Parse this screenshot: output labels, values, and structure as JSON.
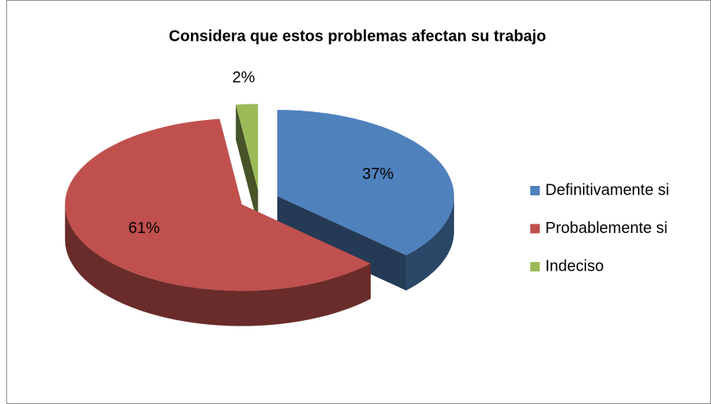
{
  "chart_data": {
    "type": "pie",
    "title": "Considera que estos problemas afectan su trabajo",
    "categories": [
      "Definitivamente si",
      "Probablemente si",
      "Indeciso"
    ],
    "values": [
      37,
      61,
      2
    ],
    "value_labels": [
      "37%",
      "61%",
      "2%"
    ],
    "colors": [
      "#4f81bd",
      "#c0504d",
      "#9bbb59"
    ],
    "legend": "right"
  }
}
